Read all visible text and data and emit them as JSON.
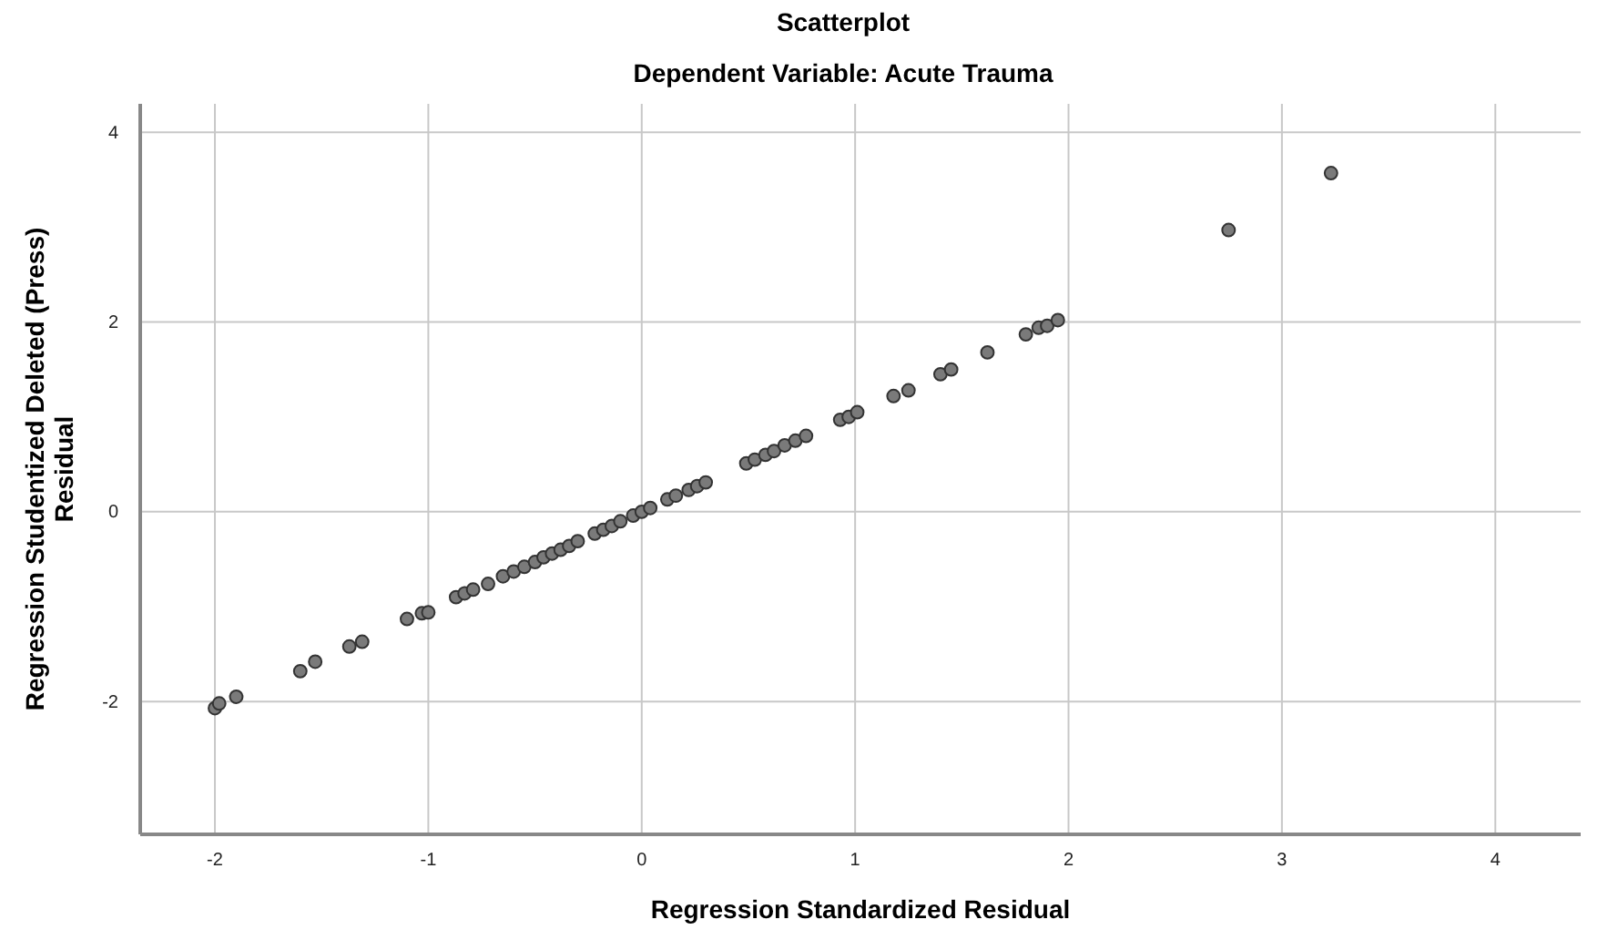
{
  "chart_data": {
    "type": "scatter",
    "title": "Scatterplot",
    "subtitle": "Dependent Variable: Acute Trauma",
    "xlabel": "Regression Standardized Residual",
    "ylabel": "Regression Studentized Deleted (Press) Residual",
    "xlim": [
      -2.35,
      4.4
    ],
    "ylim": [
      -3.4,
      4.3
    ],
    "xticks": [
      -2,
      -1,
      0,
      1,
      2,
      3,
      4
    ],
    "yticks": [
      -2,
      0,
      2,
      4
    ],
    "grid": true,
    "marker": "circle",
    "series": [
      {
        "color": "#7a7a7a",
        "x": [
          -2.0,
          -1.98,
          -1.9,
          -1.6,
          -1.53,
          -1.37,
          -1.31,
          -1.1,
          -1.03,
          -1.0,
          -0.87,
          -0.83,
          -0.79,
          -0.72,
          -0.65,
          -0.6,
          -0.55,
          -0.5,
          -0.46,
          -0.42,
          -0.38,
          -0.34,
          -0.3,
          -0.22,
          -0.18,
          -0.14,
          -0.1,
          -0.04,
          0.0,
          0.04,
          0.12,
          0.16,
          0.22,
          0.26,
          0.3,
          0.49,
          0.53,
          0.58,
          0.62,
          0.67,
          0.72,
          0.77,
          0.93,
          0.97,
          1.01,
          1.18,
          1.25,
          1.4,
          1.45,
          1.62,
          1.8,
          1.86,
          1.9,
          1.95,
          2.75,
          3.23
        ],
        "values": [
          -2.07,
          -2.02,
          -1.95,
          -1.68,
          -1.58,
          -1.42,
          -1.37,
          -1.13,
          -1.07,
          -1.06,
          -0.9,
          -0.86,
          -0.82,
          -0.76,
          -0.68,
          -0.63,
          -0.58,
          -0.53,
          -0.48,
          -0.44,
          -0.4,
          -0.36,
          -0.31,
          -0.23,
          -0.19,
          -0.15,
          -0.1,
          -0.04,
          0.0,
          0.04,
          0.13,
          0.17,
          0.23,
          0.27,
          0.31,
          0.51,
          0.55,
          0.6,
          0.64,
          0.7,
          0.75,
          0.8,
          0.97,
          1.0,
          1.05,
          1.22,
          1.28,
          1.45,
          1.5,
          1.68,
          1.87,
          1.94,
          1.96,
          2.02,
          2.97,
          3.57
        ]
      }
    ]
  }
}
